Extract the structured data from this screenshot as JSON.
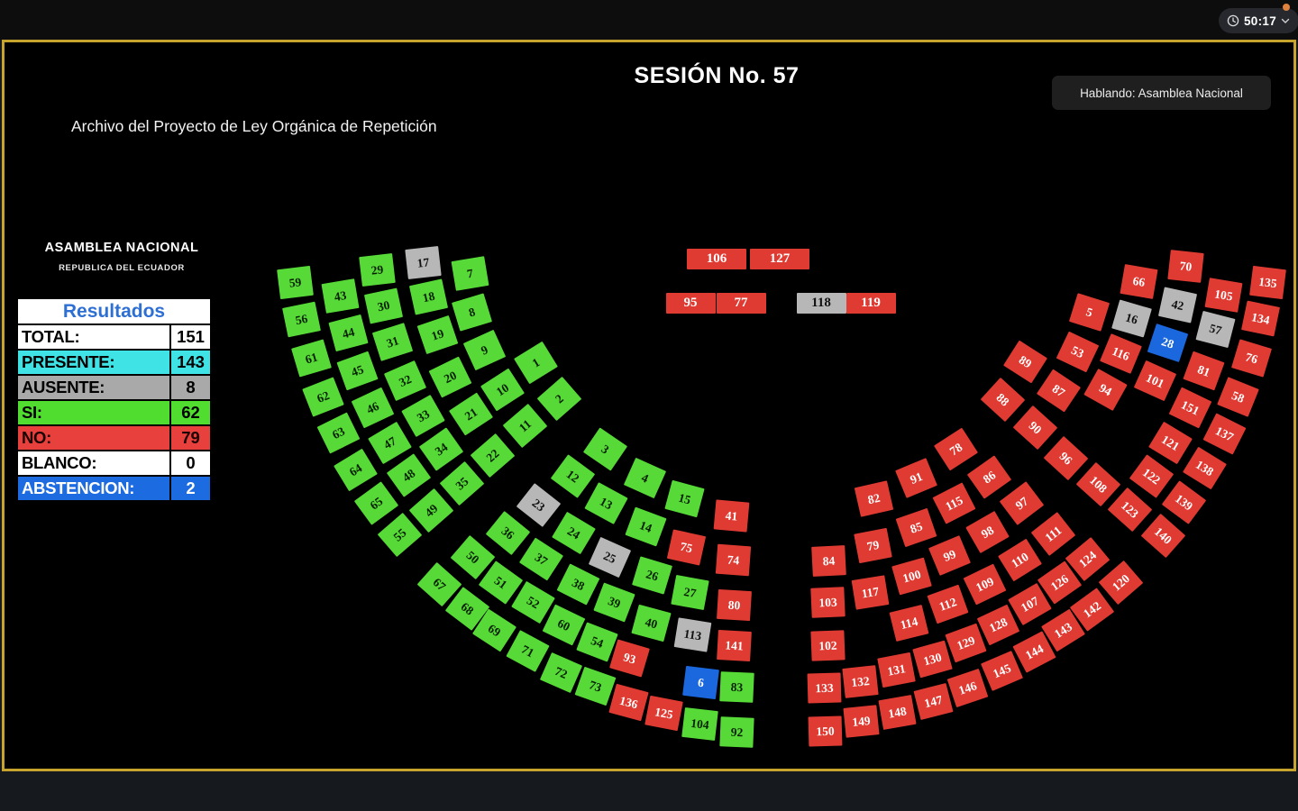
{
  "top_bar": {
    "timer": "50:17",
    "clock_icon": "clock-icon",
    "chevron_icon": "chevron-down-icon",
    "recording_dot_color": "#e0823c"
  },
  "header": {
    "title": "SESIÓN No. 57",
    "speaking": "Hablando: Asamblea Nacional",
    "subtitle": "Archivo del Proyecto de Ley Orgánica de Repetición"
  },
  "assembly": {
    "org": "ASAMBLEA NACIONAL",
    "country": "REPUBLICA DEL ECUADOR"
  },
  "results": {
    "header": "Resultados",
    "header_color": "#2e6fd4",
    "rows": [
      {
        "label": "TOTAL:",
        "value": "151",
        "bg": "#ffffff",
        "fg": "#000000"
      },
      {
        "label": "PRESENTE:",
        "value": "143",
        "bg": "#3fe3e6",
        "fg": "#000000"
      },
      {
        "label": "AUSENTE:",
        "value": "8",
        "bg": "#a9a9a9",
        "fg": "#000000"
      },
      {
        "label": "SI:",
        "value": "62",
        "bg": "#50dd30",
        "fg": "#000000"
      },
      {
        "label": "NO:",
        "value": "79",
        "bg": "#e8403c",
        "fg": "#1a0000"
      },
      {
        "label": "BLANCO:",
        "value": "0",
        "bg": "#ffffff",
        "fg": "#000000"
      },
      {
        "label": "ABSTENCION:",
        "value": "2",
        "bg": "#1c6be0",
        "fg": "#ffffff"
      }
    ]
  },
  "colors": {
    "frame_gold": "#c7a42e",
    "vote": {
      "g": {
        "bg": "#57da37",
        "fg": "#052000"
      },
      "r": {
        "bg": "#e03b33",
        "fg": "#ffffff"
      },
      "a": {
        "bg": "#b7b7b7",
        "fg": "#111111"
      },
      "b": {
        "bg": "#1a67de",
        "fg": "#ffffff"
      }
    }
  },
  "seats": [
    [
      59,
      327,
      313,
      "l",
      "g"
    ],
    [
      56,
      334,
      354,
      "l",
      "g"
    ],
    [
      61,
      345,
      397,
      "l",
      "g"
    ],
    [
      62,
      358,
      440,
      "l",
      "g"
    ],
    [
      63,
      375,
      480,
      "l",
      "g"
    ],
    [
      64,
      394,
      521,
      "l",
      "g"
    ],
    [
      65,
      417,
      558,
      "l",
      "g"
    ],
    [
      55,
      443,
      593,
      "l",
      "g"
    ],
    [
      43,
      377,
      328,
      "l",
      "g"
    ],
    [
      44,
      386,
      369,
      "l",
      "g"
    ],
    [
      45,
      396,
      411,
      "l",
      "g"
    ],
    [
      46,
      413,
      452,
      "l",
      "g"
    ],
    [
      47,
      432,
      491,
      "l",
      "g"
    ],
    [
      48,
      453,
      527,
      "l",
      "g"
    ],
    [
      49,
      478,
      566,
      "l",
      "g"
    ],
    [
      29,
      418,
      299,
      "l",
      "g"
    ],
    [
      30,
      425,
      339,
      "l",
      "g"
    ],
    [
      31,
      435,
      379,
      "l",
      "g"
    ],
    [
      32,
      449,
      422,
      "l",
      "g"
    ],
    [
      33,
      469,
      461,
      "l",
      "g"
    ],
    [
      34,
      489,
      498,
      "l",
      "g"
    ],
    [
      35,
      512,
      536,
      "l",
      "g"
    ],
    [
      17,
      469,
      291,
      "l",
      "a"
    ],
    [
      18,
      475,
      329,
      "l",
      "g"
    ],
    [
      19,
      485,
      371,
      "l",
      "g"
    ],
    [
      20,
      499,
      418,
      "l",
      "g"
    ],
    [
      21,
      522,
      459,
      "l",
      "g"
    ],
    [
      22,
      546,
      505,
      "l",
      "g"
    ],
    [
      7,
      521,
      303,
      "l",
      "g"
    ],
    [
      8,
      523,
      346,
      "l",
      "g"
    ],
    [
      9,
      537,
      388,
      "l",
      "g"
    ],
    [
      10,
      557,
      432,
      "l",
      "g"
    ],
    [
      11,
      582,
      472,
      "l",
      "g"
    ],
    [
      1,
      594,
      402,
      "l",
      "g"
    ],
    [
      2,
      620,
      442,
      "l",
      "g"
    ],
    [
      3,
      671,
      498,
      "l",
      "g"
    ],
    [
      4,
      715,
      530,
      "l",
      "g"
    ],
    [
      15,
      759,
      553,
      "l",
      "g"
    ],
    [
      41,
      811,
      572,
      "l",
      "r"
    ],
    [
      12,
      635,
      528,
      "l",
      "g"
    ],
    [
      13,
      672,
      558,
      "l",
      "g"
    ],
    [
      14,
      716,
      584,
      "l",
      "g"
    ],
    [
      75,
      761,
      607,
      "l",
      "r"
    ],
    [
      74,
      813,
      621,
      "l",
      "r"
    ],
    [
      23,
      597,
      560,
      "l",
      "a"
    ],
    [
      24,
      636,
      591,
      "l",
      "g"
    ],
    [
      25,
      676,
      618,
      "l",
      "a"
    ],
    [
      26,
      723,
      638,
      "l",
      "g"
    ],
    [
      27,
      765,
      657,
      "l",
      "g"
    ],
    [
      80,
      814,
      671,
      "l",
      "r"
    ],
    [
      36,
      563,
      591,
      "l",
      "g"
    ],
    [
      37,
      600,
      620,
      "l",
      "g"
    ],
    [
      38,
      641,
      648,
      "l",
      "g"
    ],
    [
      39,
      681,
      668,
      "l",
      "g"
    ],
    [
      40,
      722,
      691,
      "l",
      "g"
    ],
    [
      113,
      768,
      704,
      "l",
      "a"
    ],
    [
      141,
      814,
      716,
      "l",
      "r"
    ],
    [
      50,
      524,
      618,
      "l",
      "g"
    ],
    [
      51,
      555,
      646,
      "l",
      "g"
    ],
    [
      52,
      591,
      668,
      "l",
      "g"
    ],
    [
      60,
      625,
      693,
      "l",
      "g"
    ],
    [
      54,
      662,
      712,
      "l",
      "g"
    ],
    [
      93,
      698,
      730,
      "l",
      "r"
    ],
    [
      6,
      777,
      757,
      "l",
      "b"
    ],
    [
      83,
      817,
      762,
      "l",
      "g"
    ],
    [
      67,
      487,
      648,
      "l",
      "g"
    ],
    [
      68,
      518,
      675,
      "l",
      "g"
    ],
    [
      69,
      548,
      699,
      "l",
      "g"
    ],
    [
      71,
      585,
      722,
      "l",
      "g"
    ],
    [
      72,
      622,
      746,
      "l",
      "g"
    ],
    [
      73,
      660,
      761,
      "l",
      "g"
    ],
    [
      136,
      697,
      779,
      "l",
      "r"
    ],
    [
      125,
      736,
      791,
      "l",
      "r"
    ],
    [
      104,
      776,
      803,
      "l",
      "g"
    ],
    [
      92,
      817,
      812,
      "l",
      "g"
    ],
    [
      106,
      795,
      287,
      "t",
      "r",
      66,
      23
    ],
    [
      127,
      865,
      287,
      "t",
      "r",
      66,
      23
    ],
    [
      95,
      766,
      336,
      "t",
      "r",
      55,
      23
    ],
    [
      77,
      822,
      336,
      "t",
      "r",
      55,
      23
    ],
    [
      118,
      911,
      336,
      "t",
      "a",
      55,
      23
    ],
    [
      119,
      966,
      336,
      "t",
      "r",
      55,
      23
    ],
    [
      5,
      1208,
      346,
      "r",
      "r"
    ],
    [
      53,
      1195,
      390,
      "r",
      "r"
    ],
    [
      89,
      1137,
      401,
      "r",
      "r"
    ],
    [
      88,
      1112,
      443,
      "r",
      "r"
    ],
    [
      87,
      1174,
      433,
      "r",
      "r"
    ],
    [
      90,
      1148,
      474,
      "r",
      "r"
    ],
    [
      96,
      1182,
      508,
      "r",
      "r"
    ],
    [
      108,
      1218,
      537,
      "r",
      "r"
    ],
    [
      78,
      1060,
      498,
      "r",
      "r"
    ],
    [
      91,
      1016,
      530,
      "r",
      "r"
    ],
    [
      82,
      969,
      553,
      "r",
      "r"
    ],
    [
      86,
      1097,
      529,
      "r",
      "r"
    ],
    [
      115,
      1058,
      558,
      "r",
      "r"
    ],
    [
      97,
      1133,
      558,
      "r",
      "r"
    ],
    [
      85,
      1016,
      585,
      "r",
      "r"
    ],
    [
      98,
      1095,
      590,
      "r",
      "r"
    ],
    [
      111,
      1168,
      592,
      "r",
      "r"
    ],
    [
      79,
      968,
      605,
      "r",
      "r"
    ],
    [
      99,
      1053,
      616,
      "r",
      "r"
    ],
    [
      110,
      1131,
      621,
      "r",
      "r"
    ],
    [
      84,
      919,
      622,
      "r",
      "r"
    ],
    [
      100,
      1011,
      639,
      "r",
      "r"
    ],
    [
      109,
      1092,
      648,
      "r",
      "r"
    ],
    [
      124,
      1206,
      620,
      "r",
      "r"
    ],
    [
      126,
      1175,
      646,
      "r",
      "r"
    ],
    [
      117,
      965,
      657,
      "r",
      "r"
    ],
    [
      112,
      1051,
      670,
      "r",
      "r"
    ],
    [
      107,
      1142,
      670,
      "r",
      "r"
    ],
    [
      103,
      918,
      668,
      "r",
      "r"
    ],
    [
      114,
      1008,
      691,
      "r",
      "r"
    ],
    [
      128,
      1107,
      693,
      "r",
      "r"
    ],
    [
      142,
      1211,
      676,
      "r",
      "r"
    ],
    [
      102,
      918,
      716,
      "r",
      "r"
    ],
    [
      129,
      1071,
      713,
      "r",
      "r"
    ],
    [
      143,
      1179,
      699,
      "r",
      "r"
    ],
    [
      130,
      1034,
      731,
      "r",
      "r"
    ],
    [
      144,
      1147,
      723,
      "r",
      "r"
    ],
    [
      131,
      994,
      743,
      "r",
      "r"
    ],
    [
      145,
      1111,
      744,
      "r",
      "r"
    ],
    [
      132,
      954,
      756,
      "r",
      "r"
    ],
    [
      146,
      1073,
      763,
      "r",
      "r"
    ],
    [
      133,
      914,
      763,
      "r",
      "r"
    ],
    [
      147,
      1035,
      778,
      "r",
      "r"
    ],
    [
      148,
      995,
      790,
      "r",
      "r"
    ],
    [
      149,
      955,
      800,
      "r",
      "r"
    ],
    [
      150,
      915,
      811,
      "r",
      "r"
    ],
    [
      66,
      1263,
      312,
      "r",
      "r"
    ],
    [
      16,
      1255,
      353,
      "r",
      "a"
    ],
    [
      116,
      1243,
      392,
      "r",
      "r"
    ],
    [
      94,
      1226,
      432,
      "r",
      "r"
    ],
    [
      70,
      1315,
      295,
      "r",
      "r"
    ],
    [
      42,
      1306,
      338,
      "r",
      "a"
    ],
    [
      28,
      1295,
      380,
      "r",
      "b"
    ],
    [
      101,
      1281,
      422,
      "r",
      "r"
    ],
    [
      105,
      1357,
      327,
      "r",
      "r"
    ],
    [
      57,
      1348,
      365,
      "r",
      "a"
    ],
    [
      81,
      1335,
      411,
      "r",
      "r"
    ],
    [
      151,
      1320,
      452,
      "r",
      "r"
    ],
    [
      121,
      1298,
      491,
      "r",
      "r"
    ],
    [
      122,
      1277,
      528,
      "r",
      "r"
    ],
    [
      123,
      1253,
      565,
      "r",
      "r"
    ],
    [
      140,
      1290,
      594,
      "r",
      "r"
    ],
    [
      120,
      1243,
      646,
      "r",
      "r"
    ],
    [
      135,
      1406,
      313,
      "r",
      "r"
    ],
    [
      134,
      1398,
      353,
      "r",
      "r"
    ],
    [
      76,
      1388,
      397,
      "r",
      "r"
    ],
    [
      58,
      1373,
      440,
      "r",
      "r"
    ],
    [
      137,
      1358,
      481,
      "r",
      "r"
    ],
    [
      138,
      1336,
      519,
      "r",
      "r"
    ],
    [
      139,
      1313,
      557,
      "r",
      "r"
    ]
  ]
}
